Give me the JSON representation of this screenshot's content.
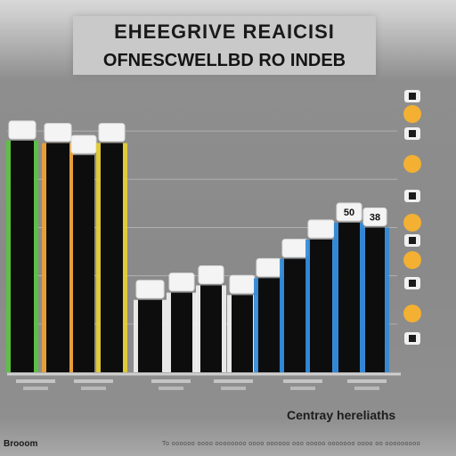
{
  "header": {
    "title": "EHEEGRIVE REAICISI",
    "subtitle": "OFNESCWELLBD RO INDEB"
  },
  "footer": {
    "corner_label": "Brooom",
    "footnote": "To oooooo oooo oooooooo oooo oooooo ooo ooooo ooooooo oooo oo ooooooooo"
  },
  "colors": {
    "bar": "#0d0d0d",
    "gridline": "#b0b0b0",
    "baseline": "#cfcfcf",
    "accent_green": "#58c43c",
    "accent_orange": "#f0a030",
    "accent_yellow": "#e8d030",
    "accent_white": "#f2f2f2",
    "accent_blue": "#2f88d8",
    "marker_orange": "#f3b032",
    "label_box": "#f4f4f4"
  },
  "chart_data": {
    "type": "bar",
    "title": "EHEEGRIVE REAICISI",
    "subtitle": "OFNESCWELLBD RO INDEB",
    "xlabel": "Centray hereliaths",
    "ylabel": "",
    "categories": [
      "",
      "",
      "",
      "",
      "",
      "",
      "",
      "",
      "",
      "",
      "",
      "",
      "",
      ""
    ],
    "category_groups": [
      "",
      "",
      "",
      "",
      "",
      ""
    ],
    "values": [
      96,
      95,
      90,
      95,
      30,
      33,
      36,
      32,
      39,
      47,
      55,
      62,
      60,
      59
    ],
    "data_labels": [
      "",
      "",
      "",
      "",
      "",
      "",
      "",
      "",
      "",
      "",
      "",
      "50",
      "38",
      "38"
    ],
    "accent": [
      "green",
      "orange",
      "",
      "yellow",
      "white",
      "white",
      "white",
      "white",
      "blue",
      "blue",
      "blue",
      "blue",
      "blue",
      ""
    ],
    "ylim": [
      0,
      110
    ],
    "grid": true,
    "legend": {
      "placement": "right",
      "entries": [
        {
          "name": "",
          "marker": "square"
        },
        {
          "name": "",
          "marker": "circle"
        },
        {
          "name": "",
          "marker": "square"
        },
        {
          "name": "",
          "marker": "circle"
        },
        {
          "name": "",
          "marker": "square"
        },
        {
          "name": "",
          "marker": "circle"
        },
        {
          "name": "",
          "marker": "square"
        },
        {
          "name": "",
          "marker": "circle"
        },
        {
          "name": "",
          "marker": "square"
        },
        {
          "name": "",
          "marker": "circle"
        },
        {
          "name": "",
          "marker": "square"
        }
      ]
    }
  }
}
